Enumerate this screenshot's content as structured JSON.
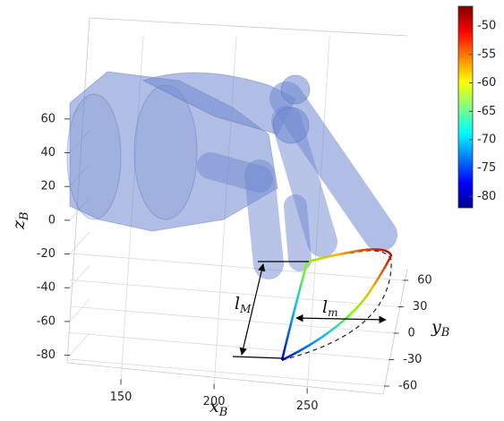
{
  "chart_data": {
    "type": "line3d",
    "xlabel": {
      "text": "x",
      "sub": "B"
    },
    "ylabel": {
      "text": "y",
      "sub": "B"
    },
    "zlabel": {
      "text": "z",
      "sub": "B"
    },
    "xlim": [
      125,
      285
    ],
    "xticks": [
      150,
      200,
      250
    ],
    "ylim": [
      -65,
      65
    ],
    "yticks": [
      60,
      30,
      0,
      -30,
      -60
    ],
    "zlim": [
      -85,
      70
    ],
    "zticks": [
      60,
      40,
      20,
      0,
      -20,
      -40,
      -60,
      -80
    ],
    "grid": true,
    "colorbar": {
      "colormap": "jet",
      "clim": [
        -82,
        -46.5
      ],
      "ticks": [
        -50,
        -55,
        -60,
        -65,
        -70,
        -75,
        -80
      ]
    },
    "annotations": [
      {
        "text": "l",
        "sub": "M"
      },
      {
        "text": "l",
        "sub": "m"
      }
    ]
  }
}
